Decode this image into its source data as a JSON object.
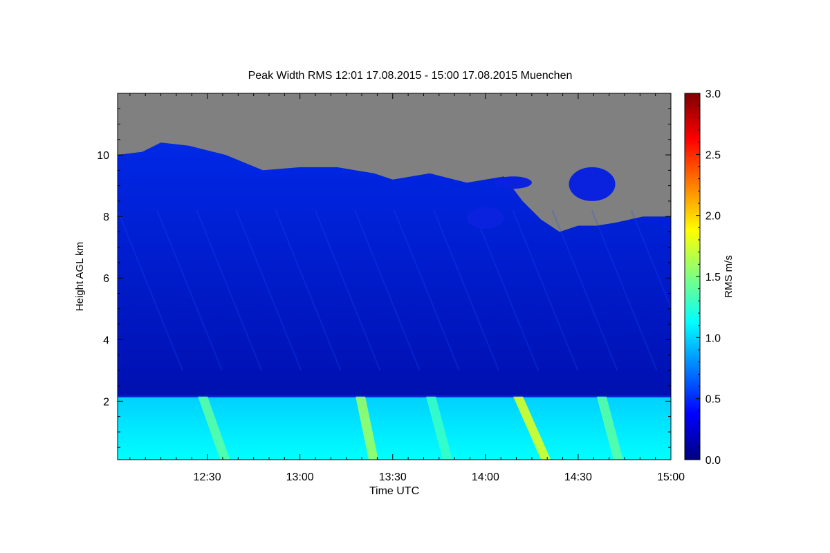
{
  "chart_data": {
    "type": "heatmap",
    "title": "Peak Width RMS   12:01 17.08.2015 - 15:00 17.08.2015 Muenchen",
    "xlabel": "Time UTC",
    "ylabel": "Height AGL km",
    "colorbar_label": "RMS m/s",
    "x_range": [
      12.0167,
      15.0
    ],
    "y_range": [
      0.1,
      12.0
    ],
    "c_range": [
      0.0,
      3.0
    ],
    "x_ticks": [
      {
        "value": 12.5,
        "label": "12:30"
      },
      {
        "value": 13.0,
        "label": "13:00"
      },
      {
        "value": 13.5,
        "label": "13:30"
      },
      {
        "value": 14.0,
        "label": "14:00"
      },
      {
        "value": 14.5,
        "label": "14:30"
      },
      {
        "value": 15.0,
        "label": "15:00"
      }
    ],
    "y_ticks": [
      {
        "value": 2,
        "label": "2"
      },
      {
        "value": 4,
        "label": "4"
      },
      {
        "value": 6,
        "label": "6"
      },
      {
        "value": 8,
        "label": "8"
      },
      {
        "value": 10,
        "label": "10"
      }
    ],
    "c_ticks": [
      {
        "value": 0.0,
        "label": "0.0"
      },
      {
        "value": 0.5,
        "label": "0.5"
      },
      {
        "value": 1.0,
        "label": "1.0"
      },
      {
        "value": 1.5,
        "label": "1.5"
      },
      {
        "value": 2.0,
        "label": "2.0"
      },
      {
        "value": 2.5,
        "label": "2.5"
      },
      {
        "value": 3.0,
        "label": "3.0"
      }
    ],
    "colormap": [
      "#00007f",
      "#0000ff",
      "#007fff",
      "#00ffff",
      "#7fff7f",
      "#ffff00",
      "#ff7f00",
      "#ff0000",
      "#7f0000"
    ],
    "no_data_color": "#808080",
    "boundary_layer_top_km": 2.15,
    "boundary_layer_rms": 1.05,
    "free_troposphere_rms": 0.3,
    "signal_top": {
      "x": [
        12.0167,
        12.15,
        12.25,
        12.4,
        12.6,
        12.8,
        13.0,
        13.2,
        13.4,
        13.5,
        13.7,
        13.9,
        14.1,
        14.2,
        14.3,
        14.4,
        14.5,
        14.6,
        14.7,
        14.85,
        15.0
      ],
      "y": [
        10.0,
        10.1,
        10.4,
        10.3,
        10.0,
        9.5,
        9.6,
        9.6,
        9.4,
        9.2,
        9.4,
        9.1,
        9.3,
        8.5,
        7.9,
        7.5,
        7.7,
        7.7,
        7.8,
        8.0,
        8.0
      ]
    },
    "cloud_patches": [
      {
        "x": [
          14.45,
          14.7
        ],
        "y": [
          8.5,
          9.6
        ]
      },
      {
        "x": [
          14.05,
          14.25
        ],
        "y": [
          8.9,
          9.3
        ]
      },
      {
        "x": [
          13.9,
          14.1
        ],
        "y": [
          7.6,
          8.3
        ]
      }
    ],
    "high_rms_streaks": [
      {
        "x_start": 12.45,
        "x_end": 12.6,
        "rms": 1.4
      },
      {
        "x_start": 13.3,
        "x_end": 13.4,
        "rms": 1.6
      },
      {
        "x_start": 13.68,
        "x_end": 13.8,
        "rms": 1.3
      },
      {
        "x_start": 14.15,
        "x_end": 14.33,
        "rms": 1.8
      },
      {
        "x_start": 14.6,
        "x_end": 14.72,
        "rms": 1.4
      }
    ]
  }
}
